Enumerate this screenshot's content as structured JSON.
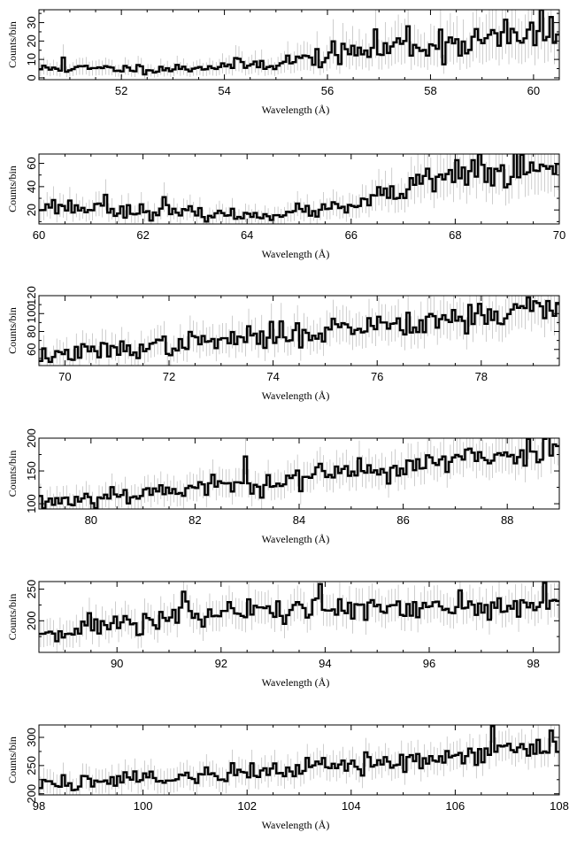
{
  "figure": {
    "background": "#ffffff",
    "line_color": "#000000",
    "error_color": "#b8b8b8"
  },
  "chart_data": [
    {
      "type": "line",
      "style": "histogram",
      "xlabel": "Wavelength (Å)",
      "ylabel": "Counts/bin",
      "xlim": [
        50.4,
        60.5
      ],
      "ylim": [
        -1,
        37
      ],
      "xticks": [
        52,
        54,
        56,
        58,
        60
      ],
      "yticks": [
        0,
        10,
        20,
        30
      ],
      "trend": [
        [
          50.4,
          5
        ],
        [
          53,
          5
        ],
        [
          55,
          8
        ],
        [
          57,
          16
        ],
        [
          60.5,
          24
        ]
      ],
      "noise": 0.45,
      "error": 0.55,
      "bins": 160,
      "seed": 11,
      "peaks": [
        [
          50.85,
          11
        ],
        [
          57.55,
          28
        ],
        [
          60.15,
          37
        ],
        [
          59.95,
          30
        ]
      ]
    },
    {
      "type": "line",
      "style": "histogram",
      "xlabel": "Wavelength (Å)",
      "ylabel": "Counts/bin",
      "xlim": [
        60,
        70
      ],
      "ylim": [
        8,
        68
      ],
      "xticks": [
        60,
        62,
        64,
        66,
        68,
        70
      ],
      "yticks": [
        20,
        40,
        60
      ],
      "trend": [
        [
          60,
          24
        ],
        [
          62,
          19
        ],
        [
          64,
          15
        ],
        [
          66,
          22
        ],
        [
          67,
          37
        ],
        [
          68,
          50
        ],
        [
          70,
          54
        ]
      ],
      "noise": 0.28,
      "error": 0.35,
      "bins": 160,
      "seed": 23,
      "peaks": [
        [
          68.45,
          68
        ],
        [
          61.3,
          33
        ],
        [
          62.4,
          31
        ]
      ]
    },
    {
      "type": "line",
      "style": "histogram",
      "xlabel": "Wavelength (Å)",
      "ylabel": "Counts/bin",
      "xlim": [
        69.5,
        79.5
      ],
      "ylim": [
        42,
        120
      ],
      "xticks": [
        70,
        72,
        74,
        76,
        78
      ],
      "yticks": [
        60,
        80,
        100,
        120
      ],
      "trend": [
        [
          69.5,
          52
        ],
        [
          72,
          65
        ],
        [
          74,
          75
        ],
        [
          76,
          88
        ],
        [
          78,
          98
        ],
        [
          79.5,
          106
        ]
      ],
      "noise": 0.16,
      "error": 0.2,
      "bins": 160,
      "seed": 37,
      "peaks": [
        [
          78.9,
          118
        ],
        [
          79.3,
          114
        ]
      ]
    },
    {
      "type": "line",
      "style": "histogram",
      "xlabel": "Wavelength (Å)",
      "ylabel": "Counts/bin",
      "xlim": [
        79,
        89
      ],
      "ylim": [
        92,
        200
      ],
      "xticks": [
        80,
        82,
        84,
        86,
        88
      ],
      "yticks": [
        100,
        150,
        200
      ],
      "trend": [
        [
          79,
          102
        ],
        [
          81,
          118
        ],
        [
          83,
          130
        ],
        [
          85,
          148
        ],
        [
          87,
          165
        ],
        [
          89,
          185
        ]
      ],
      "noise": 0.12,
      "error": 0.14,
      "bins": 160,
      "seed": 53,
      "peaks": [
        [
          88.7,
          199
        ],
        [
          82.95,
          172
        ]
      ]
    },
    {
      "type": "line",
      "style": "histogram",
      "xlabel": "Wavelength (Å)",
      "ylabel": "Counts/bin",
      "xlim": [
        88.5,
        98.5
      ],
      "ylim": [
        150,
        262
      ],
      "xticks": [
        90,
        92,
        94,
        96,
        98
      ],
      "yticks": [
        200,
        250
      ],
      "trend": [
        [
          88.5,
          182
        ],
        [
          90,
          195
        ],
        [
          92,
          212
        ],
        [
          94,
          220
        ],
        [
          96,
          215
        ],
        [
          98.5,
          225
        ]
      ],
      "noise": 0.09,
      "error": 0.1,
      "bins": 160,
      "seed": 71,
      "peaks": [
        [
          93.9,
          258
        ],
        [
          98.2,
          260
        ],
        [
          91.3,
          246
        ],
        [
          96.6,
          248
        ]
      ]
    },
    {
      "type": "line",
      "style": "histogram",
      "xlabel": "Wavelength (Å)",
      "ylabel": "Counts/bin",
      "xlim": [
        98,
        108
      ],
      "ylim": [
        198,
        322
      ],
      "xticks": [
        98,
        100,
        102,
        104,
        106,
        108
      ],
      "yticks": [
        200,
        250,
        300
      ],
      "trend": [
        [
          98,
          218
        ],
        [
          100,
          228
        ],
        [
          102,
          238
        ],
        [
          104,
          250
        ],
        [
          106,
          270
        ],
        [
          108,
          285
        ]
      ],
      "noise": 0.07,
      "error": 0.08,
      "bins": 160,
      "seed": 89,
      "peaks": [
        [
          106.7,
          320
        ],
        [
          107.85,
          312
        ]
      ]
    }
  ]
}
